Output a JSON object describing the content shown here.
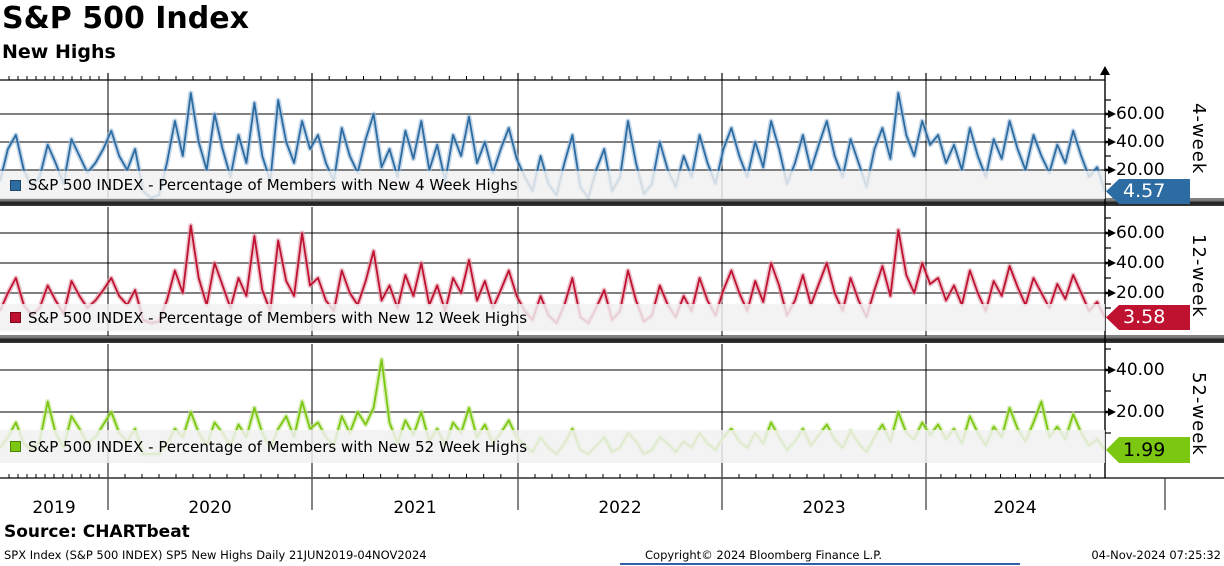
{
  "source_line": "Source: CHARTbeat",
  "footer": {
    "left": "SPX Index (S&P 500 INDEX) SP5 New Highs  Daily 21JUN2019-04NOV2024",
    "center": "Copyright© 2024 Bloomberg Finance L.P.",
    "right": "04-Nov-2024 07:25:32"
  },
  "chart_data": {
    "type": "line",
    "title": "S&P 500 Index",
    "subtitle": "New Highs",
    "x_range_label": "21JUN2019-04NOV2024",
    "x_ticks": [
      "2019",
      "2020",
      "2021",
      "2022",
      "2023",
      "2024"
    ],
    "grid": true,
    "legend_position": "inside-bottom-left",
    "panels": [
      {
        "name": "4-week",
        "legend": "S&P 500 INDEX - Percentage of Members with New 4 Week Highs",
        "color": "#2d6ca2",
        "halo_color": "#9dbcd9",
        "last_value": "4.57",
        "ylim": [
          0,
          85
        ],
        "y_ticks": [
          {
            "label": "60.00",
            "value": 60
          },
          {
            "label": "40.00",
            "value": 40
          },
          {
            "label": "20.00",
            "value": 20
          }
        ],
        "minor_ticks": [
          10,
          30,
          50,
          70
        ],
        "values": [
          12,
          35,
          45,
          20,
          8,
          15,
          38,
          25,
          10,
          42,
          30,
          18,
          25,
          35,
          48,
          30,
          20,
          35,
          5,
          0,
          2,
          25,
          55,
          30,
          75,
          40,
          20,
          60,
          35,
          15,
          45,
          25,
          68,
          30,
          12,
          70,
          40,
          25,
          55,
          35,
          45,
          25,
          12,
          50,
          30,
          18,
          42,
          60,
          22,
          35,
          15,
          48,
          28,
          55,
          20,
          38,
          12,
          45,
          30,
          58,
          25,
          40,
          18,
          35,
          50,
          28,
          15,
          5,
          30,
          10,
          2,
          25,
          45,
          8,
          0,
          20,
          35,
          5,
          15,
          55,
          25,
          3,
          10,
          40,
          20,
          8,
          30,
          15,
          45,
          25,
          10,
          35,
          50,
          30,
          15,
          40,
          22,
          55,
          35,
          10,
          25,
          45,
          20,
          38,
          55,
          30,
          15,
          42,
          25,
          8,
          35,
          50,
          28,
          75,
          45,
          30,
          55,
          38,
          45,
          25,
          38,
          20,
          50,
          30,
          15,
          42,
          28,
          55,
          35,
          20,
          45,
          30,
          18,
          38,
          25,
          48,
          30,
          15,
          22,
          4.57
        ]
      },
      {
        "name": "12-week",
        "legend": "S&P 500 INDEX - Percentage of Members with New 12 Week Highs",
        "color": "#bf1230",
        "halo_color": "#dd9aa8",
        "last_value": "3.58",
        "ylim": [
          0,
          77
        ],
        "y_ticks": [
          {
            "label": "60.00",
            "value": 60
          },
          {
            "label": "40.00",
            "value": 40
          },
          {
            "label": "20.00",
            "value": 20
          }
        ],
        "minor_ticks": [
          10,
          30,
          50,
          70
        ],
        "values": [
          8,
          20,
          30,
          12,
          5,
          10,
          25,
          15,
          6,
          28,
          18,
          10,
          15,
          22,
          30,
          18,
          12,
          22,
          2,
          0,
          1,
          15,
          35,
          20,
          65,
          30,
          12,
          40,
          25,
          10,
          30,
          18,
          58,
          22,
          8,
          55,
          28,
          18,
          60,
          25,
          30,
          15,
          8,
          35,
          20,
          12,
          28,
          48,
          15,
          25,
          10,
          32,
          18,
          40,
          12,
          25,
          8,
          30,
          20,
          42,
          15,
          28,
          10,
          22,
          35,
          18,
          8,
          2,
          18,
          5,
          0,
          12,
          30,
          4,
          0,
          10,
          22,
          2,
          8,
          35,
          15,
          1,
          5,
          25,
          12,
          4,
          18,
          8,
          30,
          15,
          5,
          22,
          35,
          20,
          8,
          28,
          14,
          40,
          25,
          5,
          15,
          32,
          12,
          26,
          40,
          20,
          8,
          30,
          15,
          4,
          22,
          38,
          18,
          62,
          32,
          20,
          40,
          26,
          30,
          15,
          25,
          12,
          35,
          20,
          8,
          28,
          18,
          38,
          24,
          12,
          30,
          20,
          10,
          26,
          16,
          32,
          20,
          8,
          14,
          3.58
        ]
      },
      {
        "name": "52-week",
        "legend": "S&P 500 INDEX - Percentage of Members with New 52 Week Highs",
        "color": "#7cc712",
        "halo_color": "#c2e48d",
        "last_value": "1.99",
        "ylim": [
          0,
          52
        ],
        "y_ticks": [
          {
            "label": "40.00",
            "value": 40
          },
          {
            "label": "20.00",
            "value": 20
          }
        ],
        "minor_ticks": [
          10,
          30,
          50
        ],
        "values": [
          3,
          8,
          15,
          5,
          2,
          6,
          25,
          10,
          3,
          18,
          12,
          5,
          8,
          14,
          20,
          10,
          6,
          12,
          0,
          0,
          0,
          5,
          12,
          8,
          20,
          10,
          4,
          15,
          10,
          4,
          14,
          8,
          22,
          10,
          3,
          12,
          18,
          8,
          25,
          12,
          15,
          8,
          4,
          18,
          10,
          20,
          14,
          22,
          45,
          15,
          5,
          16,
          9,
          20,
          6,
          12,
          4,
          15,
          10,
          22,
          8,
          14,
          5,
          10,
          16,
          8,
          4,
          1,
          8,
          3,
          0,
          5,
          12,
          2,
          0,
          4,
          8,
          1,
          3,
          10,
          6,
          0,
          2,
          8,
          5,
          1,
          6,
          3,
          10,
          5,
          2,
          8,
          12,
          6,
          3,
          10,
          5,
          15,
          8,
          2,
          6,
          12,
          4,
          9,
          14,
          7,
          3,
          11,
          5,
          1,
          8,
          14,
          6,
          20,
          10,
          7,
          15,
          9,
          14,
          7,
          12,
          5,
          18,
          10,
          4,
          13,
          8,
          22,
          12,
          6,
          15,
          25,
          8,
          13,
          7,
          19,
          10,
          4,
          7,
          1.99
        ]
      }
    ]
  }
}
